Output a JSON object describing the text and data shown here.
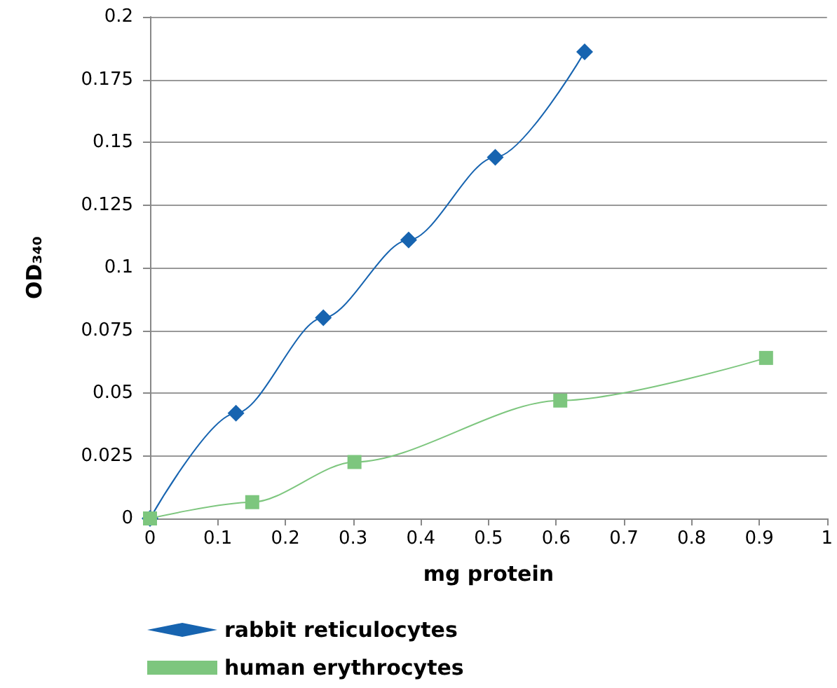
{
  "chart_data": {
    "type": "line",
    "xlabel": "mg protein",
    "ylabel": "OD₃₄₀",
    "series": [
      {
        "name": "rabbit reticulocytes",
        "color": "#1764b0",
        "marker": "diamond",
        "x": [
          0,
          0.127,
          0.256,
          0.382,
          0.51,
          0.642
        ],
        "values": [
          0,
          0.042,
          0.08,
          0.111,
          0.144,
          0.186
        ]
      },
      {
        "name": "human erythrocytes",
        "color": "#7dc67e",
        "marker": "square",
        "x": [
          0,
          0.151,
          0.302,
          0.606,
          0.91
        ],
        "values": [
          0,
          0.0065,
          0.0225,
          0.047,
          0.064
        ]
      }
    ],
    "xlim": [
      0,
      1
    ],
    "xticks": [
      0,
      0.1,
      0.2,
      0.3,
      0.4,
      0.5,
      0.6,
      0.7,
      0.8,
      0.9,
      1
    ],
    "ylim": [
      0,
      0.2
    ],
    "yticks": [
      0,
      0.025,
      0.05,
      0.075,
      0.1,
      0.125,
      0.15,
      0.175,
      0.2
    ],
    "grid": "y",
    "legend": "bottom left",
    "line_style": "solid"
  }
}
